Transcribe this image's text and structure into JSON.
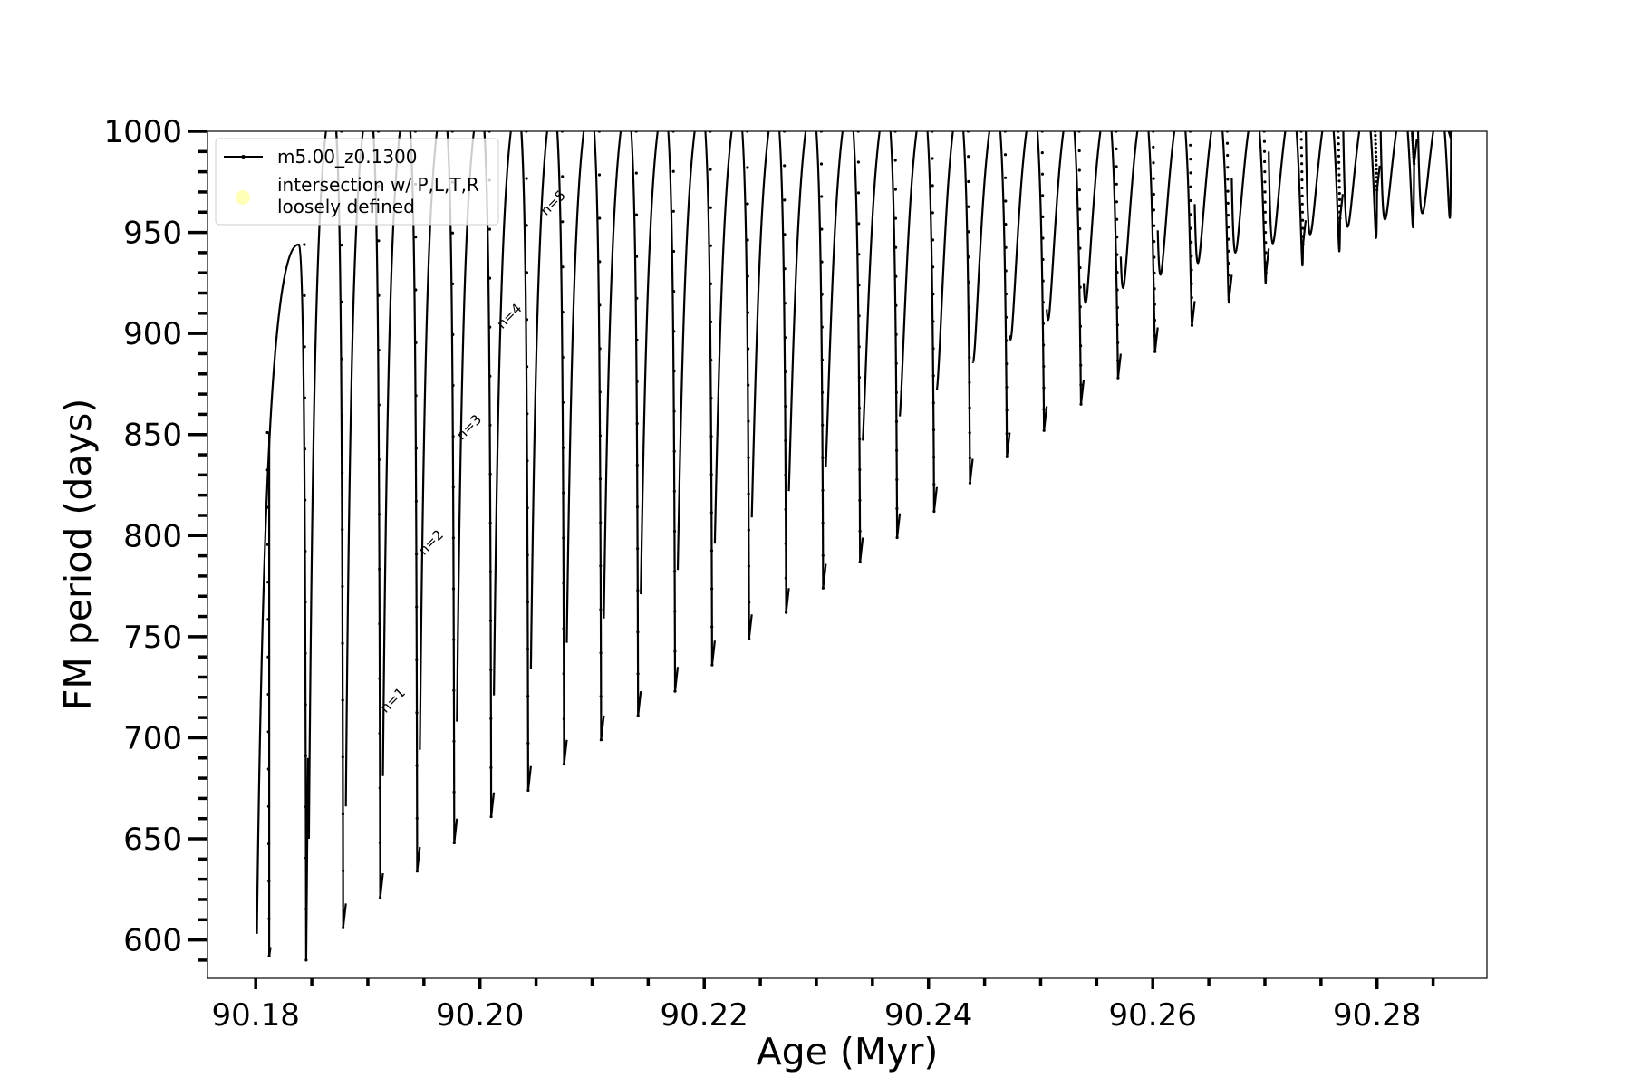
{
  "chart_data": {
    "type": "line",
    "xlabel": "Age (Myr)",
    "ylabel": "FM period (days)",
    "xlim": [
      90.1757,
      90.2898
    ],
    "ylim": [
      581,
      1000
    ],
    "x_ticks": [
      90.18,
      90.2,
      90.22,
      90.24,
      90.26,
      90.28
    ],
    "x_tick_labels": [
      "90.18",
      "90.20",
      "90.22",
      "90.24",
      "90.26",
      "90.28"
    ],
    "y_ticks": [
      600,
      650,
      700,
      750,
      800,
      850,
      900,
      950,
      1000
    ],
    "y_tick_labels": [
      "600",
      "650",
      "700",
      "750",
      "800",
      "850",
      "900",
      "950",
      "1000"
    ],
    "grid": false,
    "legend": {
      "placement": "top-left",
      "entries": [
        {
          "label": "m5.00_z0.1300",
          "marker": "line-dot",
          "color": "#000000"
        },
        {
          "label": "intersection w/ P,L,T,R\nloosely defined",
          "marker": "circle",
          "color": "#ffff99"
        }
      ]
    },
    "annotations": [
      {
        "text": "n=1",
        "x": 90.1916,
        "y": 712
      },
      {
        "text": "n=2",
        "x": 90.195,
        "y": 790
      },
      {
        "text": "n=3",
        "x": 90.1984,
        "y": 847
      },
      {
        "text": "n=4",
        "x": 90.202,
        "y": 902
      },
      {
        "text": "n=5",
        "x": 90.2059,
        "y": 958
      }
    ],
    "series": [
      {
        "name": "m5.00_z0.1300",
        "color": "#000000",
        "pulses": [
          {
            "x": 90.1812,
            "top": 851,
            "min": 592
          },
          {
            "x": 90.1845,
            "top": 944,
            "min": 590
          },
          {
            "x": 90.1878,
            "top": 1000,
            "min": 606
          },
          {
            "x": 90.1911,
            "top": 1000,
            "min": 621
          },
          {
            "x": 90.1944,
            "top": 1000,
            "min": 634
          },
          {
            "x": 90.1977,
            "top": 1000,
            "min": 648
          },
          {
            "x": 90.201,
            "top": 1000,
            "min": 661
          },
          {
            "x": 90.2043,
            "top": 1000,
            "min": 674
          },
          {
            "x": 90.2075,
            "top": 1000,
            "min": 687
          },
          {
            "x": 90.2108,
            "top": 1000,
            "min": 699
          },
          {
            "x": 90.2141,
            "top": 1000,
            "min": 711
          },
          {
            "x": 90.2174,
            "top": 1000,
            "min": 723
          },
          {
            "x": 90.2207,
            "top": 1000,
            "min": 736
          },
          {
            "x": 90.224,
            "top": 1000,
            "min": 749
          },
          {
            "x": 90.2273,
            "top": 1000,
            "min": 762
          },
          {
            "x": 90.2306,
            "top": 1000,
            "min": 774
          },
          {
            "x": 90.2339,
            "top": 1000,
            "min": 787
          },
          {
            "x": 90.2372,
            "top": 1000,
            "min": 799
          },
          {
            "x": 90.2405,
            "top": 1000,
            "min": 812
          },
          {
            "x": 90.2437,
            "top": 1000,
            "min": 826
          },
          {
            "x": 90.247,
            "top": 1000,
            "min": 839
          },
          {
            "x": 90.2503,
            "top": 1000,
            "min": 852
          },
          {
            "x": 90.2536,
            "top": 1000,
            "min": 865
          },
          {
            "x": 90.2569,
            "top": 1000,
            "min": 878
          },
          {
            "x": 90.2602,
            "top": 1000,
            "min": 891
          },
          {
            "x": 90.2635,
            "top": 1000,
            "min": 904
          },
          {
            "x": 90.2668,
            "top": 1000,
            "min": 917
          },
          {
            "x": 90.2701,
            "top": 1000,
            "min": 930
          },
          {
            "x": 90.2734,
            "top": 1000,
            "min": 944
          },
          {
            "x": 90.2767,
            "top": 1000,
            "min": 957
          },
          {
            "x": 90.28,
            "top": 1000,
            "min": 971
          },
          {
            "x": 90.2833,
            "top": 1000,
            "min": 984
          },
          {
            "x": 90.2866,
            "top": 1000,
            "min": 997
          }
        ]
      }
    ]
  }
}
